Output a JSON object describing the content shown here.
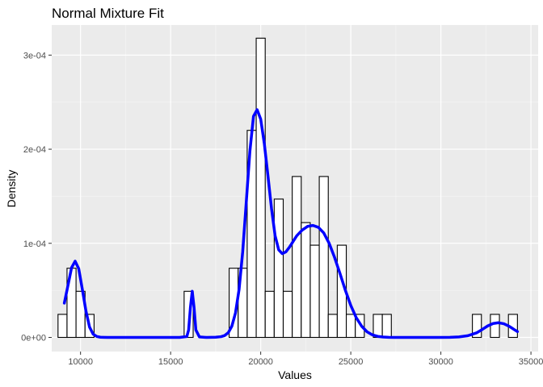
{
  "chart_data": {
    "type": "bar",
    "title": "Normal Mixture Fit",
    "xlabel": "Values",
    "ylabel": "Density",
    "xlim": [
      8400,
      35400
    ],
    "ylim": [
      -1.5e-05,
      0.000332
    ],
    "x_ticks": [
      10000,
      15000,
      20000,
      25000,
      30000,
      35000
    ],
    "x_tick_labels": [
      "10000",
      "15000",
      "20000",
      "25000",
      "30000",
      "35000"
    ],
    "y_ticks": [
      0,
      0.0001,
      0.0002,
      0.0003
    ],
    "y_tick_labels": [
      "0e+00",
      "1e-04",
      "2e-04",
      "3e-04"
    ],
    "grid": true,
    "histogram": {
      "bin_width": 500,
      "bins": [
        {
          "start": 8750,
          "density": 2.45e-05
        },
        {
          "start": 9250,
          "density": 7.35e-05
        },
        {
          "start": 9750,
          "density": 4.9e-05
        },
        {
          "start": 10250,
          "density": 2.45e-05
        },
        {
          "start": 15750,
          "density": 4.9e-05
        },
        {
          "start": 18250,
          "density": 7.35e-05
        },
        {
          "start": 18750,
          "density": 7.35e-05
        },
        {
          "start": 19250,
          "density": 0.00022
        },
        {
          "start": 19750,
          "density": 0.000318
        },
        {
          "start": 20250,
          "density": 4.9e-05
        },
        {
          "start": 20750,
          "density": 0.000147
        },
        {
          "start": 21250,
          "density": 4.9e-05
        },
        {
          "start": 21750,
          "density": 0.000171
        },
        {
          "start": 22250,
          "density": 0.000122
        },
        {
          "start": 22750,
          "density": 9.8e-05
        },
        {
          "start": 23250,
          "density": 0.000171
        },
        {
          "start": 23750,
          "density": 2.45e-05
        },
        {
          "start": 24250,
          "density": 9.8e-05
        },
        {
          "start": 24750,
          "density": 2.45e-05
        },
        {
          "start": 25250,
          "density": 2.45e-05
        },
        {
          "start": 26250,
          "density": 2.45e-05
        },
        {
          "start": 26750,
          "density": 2.45e-05
        },
        {
          "start": 31750,
          "density": 2.45e-05
        },
        {
          "start": 32750,
          "density": 2.45e-05
        },
        {
          "start": 33750,
          "density": 2.45e-05
        }
      ]
    },
    "fit_line": {
      "color": "#0000ff",
      "x": [
        9100,
        9300,
        9500,
        9700,
        9900,
        10100,
        10300,
        10500,
        10700,
        10900,
        11100,
        11500,
        12500,
        14000,
        15500,
        15900,
        16000,
        16100,
        16200,
        16300,
        16400,
        16600,
        17000,
        17500,
        17800,
        18000,
        18200,
        18400,
        18600,
        18800,
        19000,
        19200,
        19400,
        19600,
        19800,
        20000,
        20200,
        20400,
        20600,
        20800,
        21000,
        21200,
        21400,
        21600,
        21800,
        22000,
        22300,
        22600,
        22900,
        23200,
        23500,
        23800,
        24100,
        24400,
        24700,
        25000,
        25300,
        25600,
        25900,
        26200,
        26500,
        26800,
        27100,
        27400,
        27800,
        28300,
        29000,
        29800,
        30500,
        31000,
        31500,
        32000,
        32300,
        32600,
        32900,
        33200,
        33500,
        33800,
        34100,
        34250
      ],
      "y": [
        3.65e-05,
        5.5e-05,
        7.4e-05,
        8.1e-05,
        7.3e-05,
        5.1e-05,
        2.8e-05,
        1.1e-05,
        3.5e-06,
        1e-06,
        2e-07,
        0,
        0,
        0,
        0,
        1e-06,
        8e-06,
        3.2e-05,
        4.9e-05,
        3.2e-05,
        8e-06,
        5e-07,
        0,
        2e-07,
        8e-07,
        2e-06,
        5e-06,
        1.2e-05,
        2.6e-05,
        5.1e-05,
        9.1e-05,
        0.000144,
        0.000198,
        0.000235,
        0.000242,
        0.000232,
        0.000206,
        0.000172,
        0.000137,
        0.000108,
        9.3e-05,
        8.9e-05,
        9.1e-05,
        9.6e-05,
        0.000102,
        0.000108,
        0.000114,
        0.000118,
        0.000119,
        0.000117,
        0.000111,
        0.0001,
        8.5e-05,
        6.8e-05,
        5e-05,
        3.4e-05,
        2.1e-05,
        1.2e-05,
        6e-06,
        2.7e-06,
        1.1e-06,
        4e-07,
        1e-07,
        0,
        0,
        0,
        0,
        0,
        1e-07,
        5e-07,
        1.8e-06,
        5e-06,
        8.5e-06,
        1.22e-05,
        1.48e-05,
        1.56e-05,
        1.45e-05,
        1.17e-05,
        8e-06,
        6.2e-06
      ]
    }
  }
}
